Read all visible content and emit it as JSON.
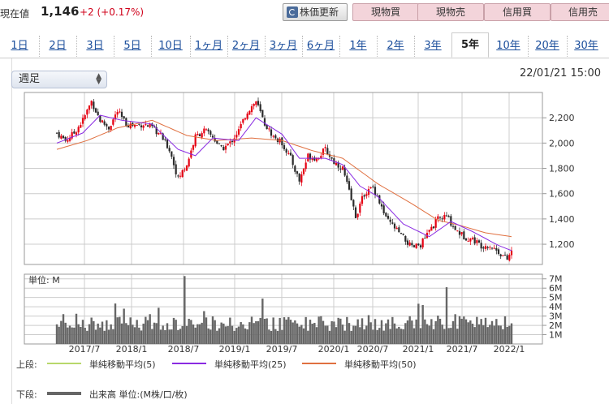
{
  "price": {
    "label": "現在値",
    "value": "1,146",
    "change": "+2 (+0.17%)"
  },
  "buttons": {
    "refresh": "株価更新",
    "spot_buy": "現物買",
    "spot_sell": "現物売",
    "margin_buy": "信用買",
    "margin_sell": "信用売"
  },
  "tabs": [
    "1日",
    "2日",
    "3日",
    "5日",
    "10日",
    "1ヶ月",
    "2ヶ月",
    "3ヶ月",
    "6ヶ月",
    "1年",
    "2年",
    "3年",
    "5年",
    "10年",
    "20年",
    "30年"
  ],
  "active_tab": "5年",
  "period_select": "週足",
  "datetime": "22/01/21 15:00",
  "colors": {
    "up": "#e60012",
    "down": "#2b2b2b",
    "ma5": "#b8d86b",
    "ma25": "#8a2be2",
    "ma50": "#e07040",
    "volume": "#666666"
  },
  "chart_data": [
    {
      "type": "candlestick",
      "x_ticks": [
        "2017/7",
        "2018/1",
        "2018/7",
        "2019/1",
        "2019/7",
        "2020/1",
        "2020/7",
        "2021/1",
        "2021/7",
        "2022/1"
      ],
      "y_ticks": [
        "2,200",
        "2,000",
        "1,800",
        "1,600",
        "1,400",
        "1,200"
      ],
      "ylim": [
        1040,
        2400
      ],
      "close_trend": [
        [
          0,
          2080
        ],
        [
          4,
          2020
        ],
        [
          8,
          2080
        ],
        [
          12,
          2180
        ],
        [
          16,
          2330
        ],
        [
          20,
          2180
        ],
        [
          24,
          2120
        ],
        [
          28,
          2250
        ],
        [
          32,
          2150
        ],
        [
          36,
          2140
        ],
        [
          40,
          2150
        ],
        [
          44,
          2120
        ],
        [
          48,
          2060
        ],
        [
          52,
          1950
        ],
        [
          56,
          1720
        ],
        [
          60,
          1830
        ],
        [
          64,
          2050
        ],
        [
          68,
          2100
        ],
        [
          72,
          2050
        ],
        [
          76,
          1950
        ],
        [
          80,
          2000
        ],
        [
          84,
          2100
        ],
        [
          88,
          2250
        ],
        [
          92,
          2330
        ],
        [
          96,
          2150
        ],
        [
          100,
          2050
        ],
        [
          104,
          2000
        ],
        [
          108,
          1880
        ],
        [
          112,
          1700
        ],
        [
          116,
          1900
        ],
        [
          120,
          1880
        ],
        [
          124,
          1950
        ],
        [
          128,
          1850
        ],
        [
          132,
          1800
        ],
        [
          136,
          1550
        ],
        [
          138,
          1420
        ],
        [
          142,
          1600
        ],
        [
          146,
          1650
        ],
        [
          148,
          1580
        ],
        [
          152,
          1400
        ],
        [
          156,
          1330
        ],
        [
          160,
          1250
        ],
        [
          164,
          1170
        ],
        [
          168,
          1200
        ],
        [
          172,
          1300
        ],
        [
          176,
          1400
        ],
        [
          180,
          1420
        ],
        [
          184,
          1320
        ],
        [
          188,
          1260
        ],
        [
          192,
          1240
        ],
        [
          196,
          1190
        ],
        [
          200,
          1190
        ],
        [
          204,
          1140
        ],
        [
          208,
          1080
        ],
        [
          210,
          1146
        ]
      ],
      "ma25_trend": [
        [
          0,
          2000
        ],
        [
          12,
          2080
        ],
        [
          20,
          2220
        ],
        [
          30,
          2180
        ],
        [
          44,
          2150
        ],
        [
          56,
          1950
        ],
        [
          64,
          1900
        ],
        [
          72,
          2040
        ],
        [
          84,
          2020
        ],
        [
          92,
          2200
        ],
        [
          104,
          2070
        ],
        [
          112,
          1880
        ],
        [
          124,
          1880
        ],
        [
          132,
          1830
        ],
        [
          140,
          1660
        ],
        [
          148,
          1580
        ],
        [
          160,
          1360
        ],
        [
          172,
          1260
        ],
        [
          182,
          1380
        ],
        [
          192,
          1300
        ],
        [
          204,
          1190
        ],
        [
          210,
          1150
        ]
      ],
      "ma50_trend": [
        [
          0,
          1950
        ],
        [
          14,
          2020
        ],
        [
          28,
          2120
        ],
        [
          44,
          2180
        ],
        [
          60,
          2060
        ],
        [
          74,
          2020
        ],
        [
          90,
          2040
        ],
        [
          104,
          2020
        ],
        [
          118,
          1940
        ],
        [
          132,
          1880
        ],
        [
          148,
          1680
        ],
        [
          164,
          1520
        ],
        [
          176,
          1390
        ],
        [
          186,
          1350
        ],
        [
          198,
          1290
        ],
        [
          210,
          1260
        ]
      ],
      "series": [
        {
          "name": "単純移動平均(5)"
        },
        {
          "name": "単純移動平均(25)"
        },
        {
          "name": "単純移動平均(50)"
        }
      ]
    },
    {
      "type": "bar",
      "unit_label": "単位: M",
      "y_ticks": [
        "7M",
        "6M",
        "5M",
        "4M",
        "3M",
        "2M",
        "1M"
      ],
      "ylim": [
        0,
        7.5
      ],
      "series": [
        {
          "name": "出来高 単位:(M株/口/枚)"
        }
      ]
    }
  ],
  "legend": {
    "upper_label": "上段:",
    "lower_label": "下段:",
    "ma5": "単純移動平均(5)",
    "ma25": "単純移動平均(25)",
    "ma50": "単純移動平均(50)",
    "volume": "出来高 単位:(M株/口/枚)"
  }
}
